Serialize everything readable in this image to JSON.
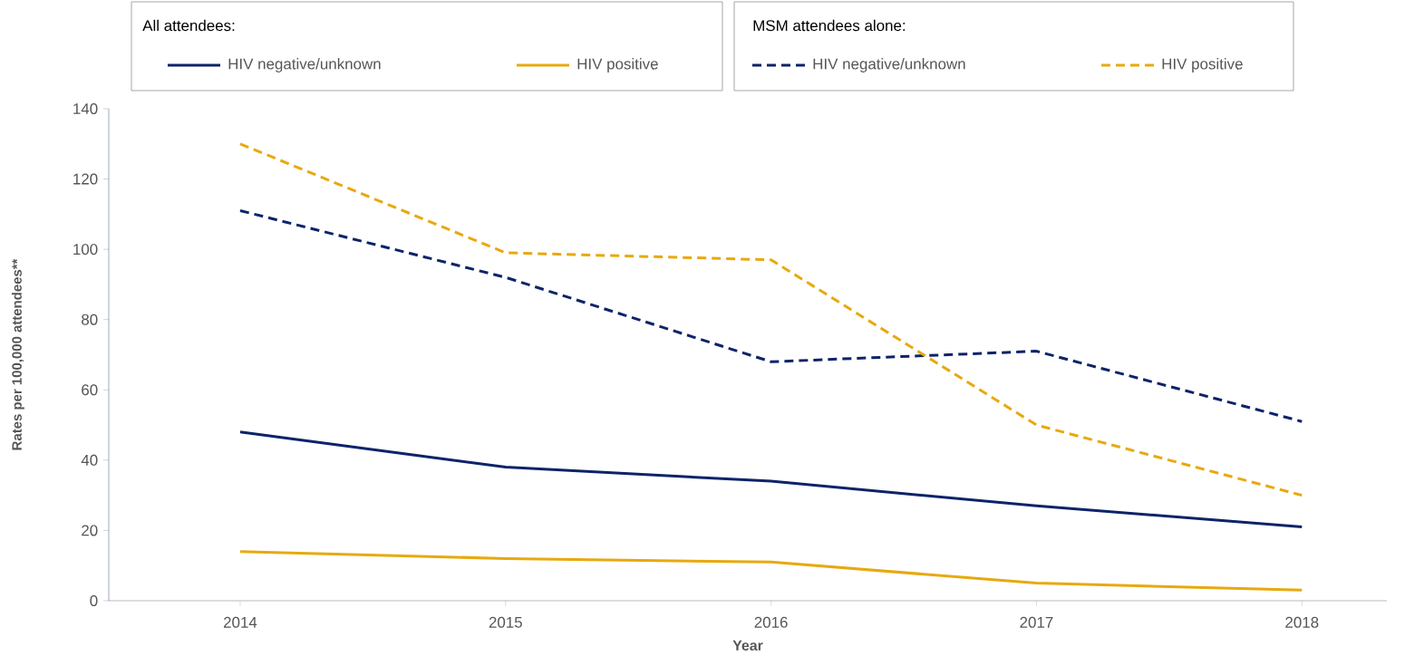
{
  "chart_data": {
    "type": "line",
    "xlabel": "Year",
    "ylabel": "Rates per 100,000 attendees**",
    "annotations": [
      "All attendees:",
      "MSM attendees alone:"
    ],
    "categories": [
      "2014",
      "2015",
      "2016",
      "2017",
      "2018"
    ],
    "series": [
      {
        "name": "HIV negative/unknown",
        "color": "#0d2369",
        "line_style": "solid",
        "values": [
          48,
          38,
          34,
          27,
          21
        ]
      },
      {
        "name": "HIV positive",
        "color": "#e8a90f",
        "line_style": "solid",
        "values": [
          14,
          12,
          11,
          5,
          3
        ]
      },
      {
        "name": "HIV negative/unknown",
        "color": "#0d2369",
        "line_style": "dashed",
        "values": [
          111,
          92,
          68,
          71,
          51
        ]
      },
      {
        "name": "HIV positive",
        "color": "#e8a90f",
        "line_style": "dashed",
        "values": [
          130,
          99,
          97,
          50,
          30
        ]
      }
    ],
    "ylim": [
      0,
      140
    ],
    "yticks": [
      0,
      20,
      40,
      60,
      80,
      100,
      120,
      140
    ],
    "legend": "top"
  }
}
